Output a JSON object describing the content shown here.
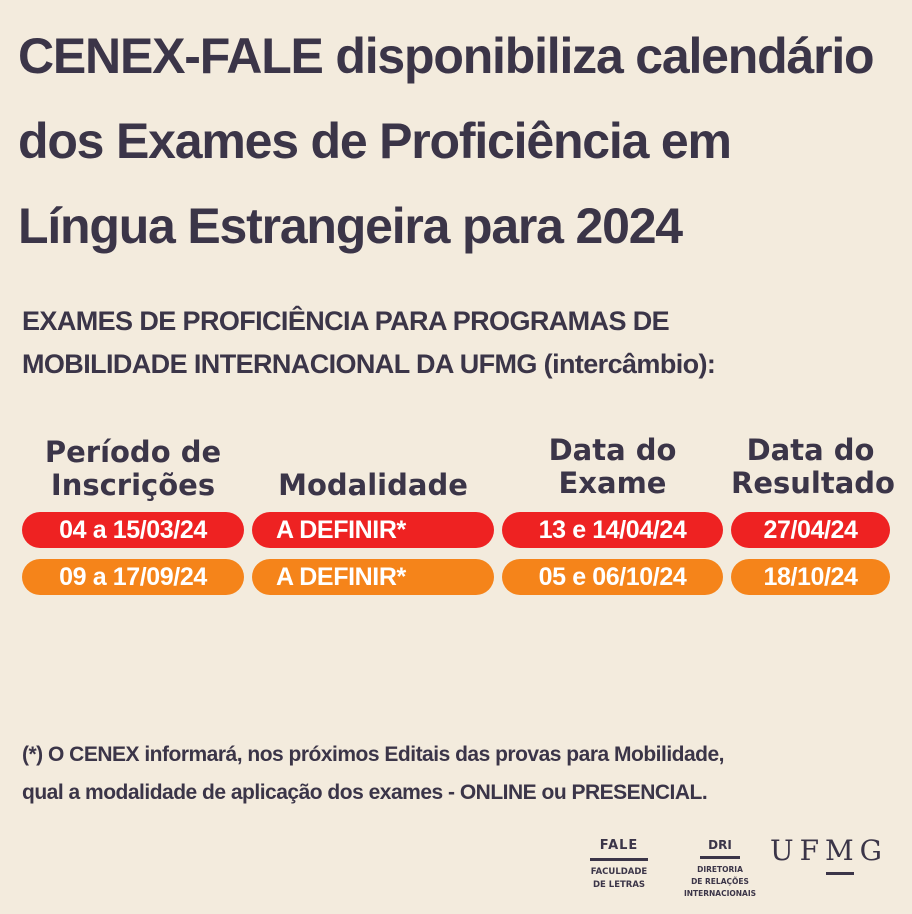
{
  "title": {
    "line1": "CENEX-FALE disponibiliza calendário",
    "line2": "dos Exames de Proficiência em",
    "line3": "Língua Estrangeira para 2024"
  },
  "subtitle": {
    "line1": "EXAMES DE PROFICIÊNCIA PARA PROGRAMAS DE",
    "line2": "MOBILIDADE INTERNACIONAL DA UFMG (intercâmbio):"
  },
  "table": {
    "headers": {
      "period": [
        "Período de",
        "Inscrições"
      ],
      "modality": [
        "Modalidade"
      ],
      "exam_date": [
        "Data do",
        "Exame"
      ],
      "result_date": [
        "Data do",
        "Resultado"
      ]
    },
    "rows": [
      {
        "period": "04 a 15/03/24",
        "modality": "A DEFINIR*",
        "exam_date": "13 e 14/04/24",
        "result_date": "27/04/24",
        "color": "#ee2222"
      },
      {
        "period": "09 a 17/09/24",
        "modality": "A DEFINIR*",
        "exam_date": "05 e 06/10/24",
        "result_date": "18/10/24",
        "color": "#f5841a"
      }
    ]
  },
  "note": {
    "line1": "(*) O CENEX informará, nos próximos Editais das provas para Mobilidade,",
    "line2": "qual a modalidade de aplicação dos exames - ONLINE ou PRESENCIAL."
  },
  "logos": {
    "fale": {
      "name": "FALE",
      "sub1": "FACULDADE",
      "sub2": "DE LETRAS"
    },
    "dri": {
      "name": "DRI",
      "sub1": "DIRETORIA",
      "sub2": "DE RELAÇÕES",
      "sub3": "INTERNACIONAIS"
    },
    "ufmg": {
      "name": "UFMG"
    }
  },
  "colors": {
    "background": "#f3ebdd",
    "text": "#3b3548",
    "row1": "#ee2222",
    "row2": "#f5841a"
  }
}
